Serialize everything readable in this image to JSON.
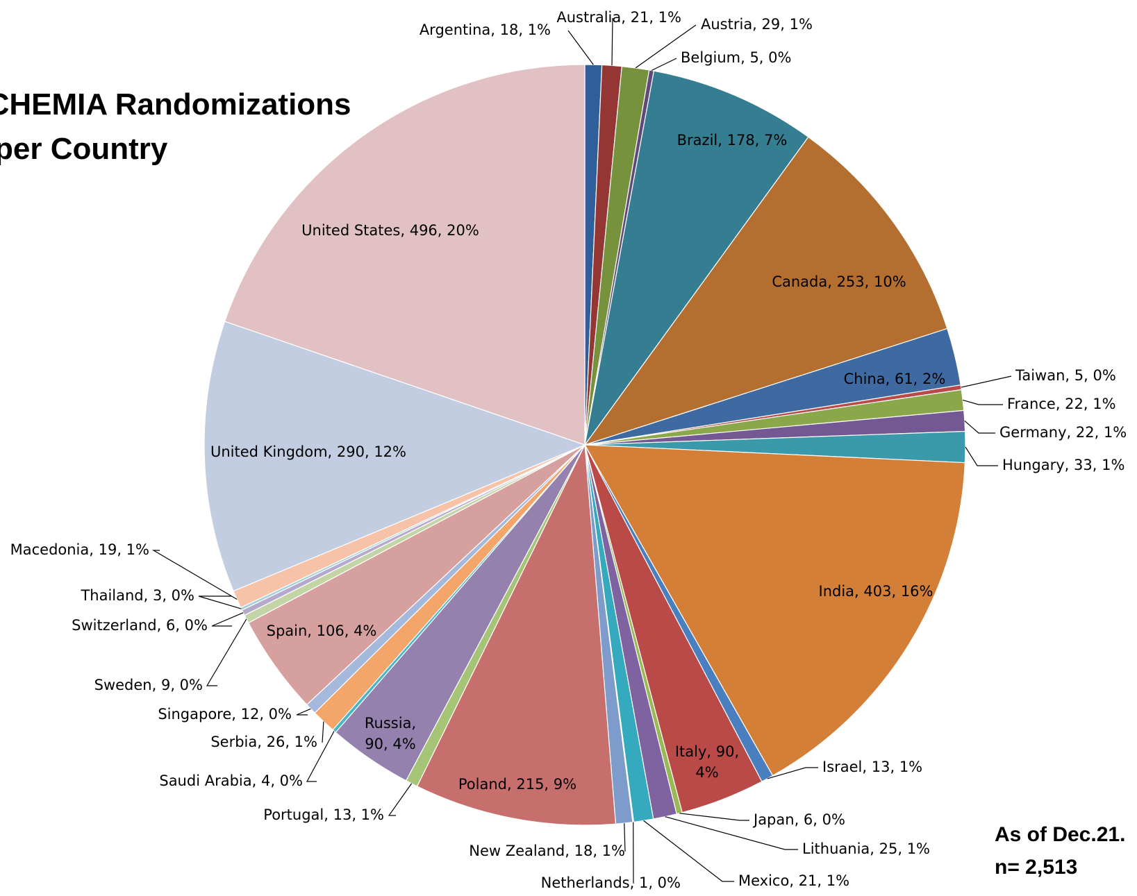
{
  "chart_data": {
    "type": "pie",
    "title_lines": [
      "ISCHEMIA Randomizations",
      "per Country"
    ],
    "annotations": [
      "As of Dec.21.",
      "n= 2,513"
    ],
    "start_angle_deg": 0,
    "direction": "clockwise",
    "slices": [
      {
        "label": "Argentina, 18, 1%",
        "value": 18,
        "color": "#2e5f9a"
      },
      {
        "label": "Australia, 21, 1%",
        "value": 21,
        "color": "#943634"
      },
      {
        "label": "Austria, 29, 1%",
        "value": 29,
        "color": "#76923c"
      },
      {
        "label": "Belgium, 5, 0%",
        "value": 5,
        "color": "#604a7b"
      },
      {
        "label": "Brazil, 178, 7%",
        "value": 178,
        "color": "#357d91"
      },
      {
        "label": "Canada, 253, 10%",
        "value": 253,
        "color": "#b36e30"
      },
      {
        "label": "China, 61, 2%",
        "value": 61,
        "color": "#3f6aa1"
      },
      {
        "label": "Taiwan, 5, 0%",
        "value": 5,
        "color": "#b84a4a"
      },
      {
        "label": "France, 22, 1%",
        "value": 22,
        "color": "#8aa84a"
      },
      {
        "label": "Germany, 22, 1%",
        "value": 22,
        "color": "#735894"
      },
      {
        "label": "Hungary, 33, 1%",
        "value": 33,
        "color": "#3a99aa"
      },
      {
        "label": "India, 403, 16%",
        "value": 403,
        "color": "#d37f38"
      },
      {
        "label": "Israel, 13, 1%",
        "value": 13,
        "color": "#4a7fbf"
      },
      {
        "label": "Italy, 90, 4%",
        "value": 90,
        "color": "#ba4a48",
        "display": [
          "Italy, 90,",
          "4%"
        ]
      },
      {
        "label": "Japan, 6, 0%",
        "value": 6,
        "color": "#98b954"
      },
      {
        "label": "Lithuania, 25, 1%",
        "value": 25,
        "color": "#7f62a0"
      },
      {
        "label": "Mexico, 21, 1%",
        "value": 21,
        "color": "#35a9bd"
      },
      {
        "label": "Netherlands, 1, 0%",
        "value": 1,
        "color": "#f39a4a"
      },
      {
        "label": "New Zealand, 18, 1%",
        "value": 18,
        "color": "#7d9bcb"
      },
      {
        "label": "Poland, 215, 9%",
        "value": 215,
        "color": "#c76f6d"
      },
      {
        "label": "Portugal, 13, 1%",
        "value": 13,
        "color": "#a6c476"
      },
      {
        "label": "Russia, 90, 4%",
        "value": 90,
        "color": "#9481ae",
        "display": [
          "Russia,",
          "90, 4%"
        ]
      },
      {
        "label": "Saudi Arabia, 4, 0%",
        "value": 4,
        "color": "#49b5c8"
      },
      {
        "label": "Serbia, 26, 1%",
        "value": 26,
        "color": "#f4a56a"
      },
      {
        "label": "Singapore, 12, 0%",
        "value": 12,
        "color": "#a4b9dc"
      },
      {
        "label": "Spain, 106, 4%",
        "value": 106,
        "color": "#d6a09f"
      },
      {
        "label": "Sweden, 9, 0%",
        "value": 9,
        "color": "#c3d5a6"
      },
      {
        "label": "Switzerland, 6, 0%",
        "value": 6,
        "color": "#b7a9cc"
      },
      {
        "label": "Thailand, 3, 0%",
        "value": 3,
        "color": "#a2d0dd"
      },
      {
        "label": "Macedonia, 19, 1%",
        "value": 19,
        "color": "#f7c3a8"
      },
      {
        "label": "United Kingdom, 290, 12%",
        "value": 290,
        "color": "#c3cde1"
      },
      {
        "label": "United States, 496, 20%",
        "value": 496,
        "color": "#e1c1c3"
      }
    ]
  }
}
